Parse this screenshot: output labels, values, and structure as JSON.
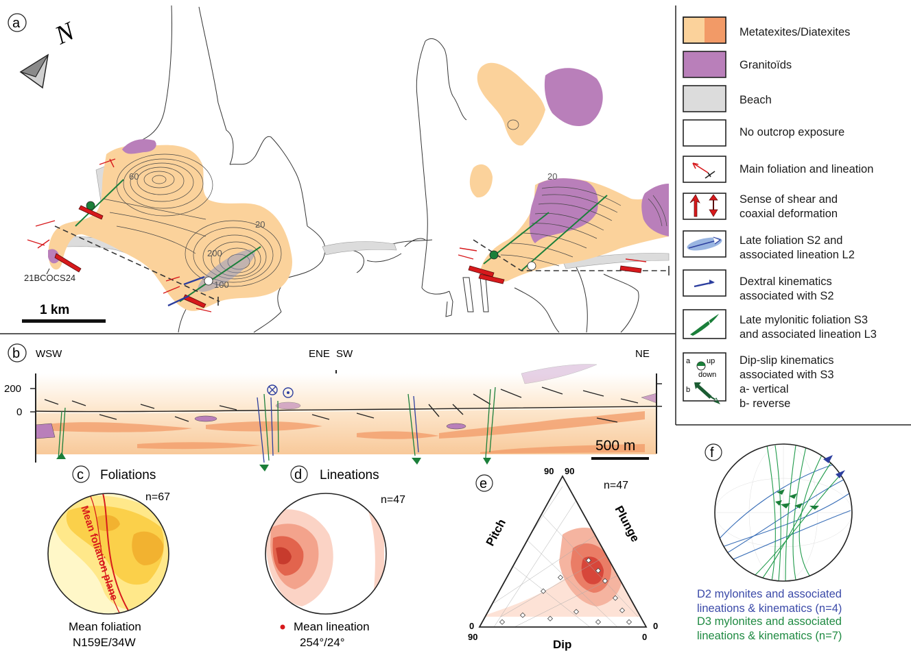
{
  "panel_a": {
    "letter": "a",
    "north_label": "N",
    "contours": [
      "60",
      "20",
      "200",
      "100",
      "20"
    ],
    "sample": "21BCOCS24",
    "scale": "1 km"
  },
  "legend": {
    "items": [
      {
        "label_lines": [
          "Metatexites/Diatexites"
        ]
      },
      {
        "label_lines": [
          "Granitoïds"
        ]
      },
      {
        "label_lines": [
          "Beach"
        ]
      },
      {
        "label_lines": [
          "No outcrop exposure"
        ]
      },
      {
        "label_lines": [
          "Main foliation and lineation"
        ]
      },
      {
        "label_lines": [
          "Sense of shear and",
          "coaxial deformation"
        ]
      },
      {
        "label_lines": [
          "Late foliation S2 and",
          "associated lineation L2"
        ]
      },
      {
        "label_lines": [
          "Dextral kinematics",
          "associated with S2"
        ]
      },
      {
        "label_lines": [
          "Late mylonitic foliation S3",
          "and associated lineation L3"
        ]
      },
      {
        "label_lines": [
          "Dip-slip kinematics",
          "associated with S3",
          "a- vertical",
          "b- reverse"
        ]
      }
    ],
    "dipslip_icon": {
      "a": "a",
      "b": "b",
      "up": "up",
      "down": "down"
    },
    "colors": {
      "meta_light": "#fbd29b",
      "meta_dark": "#f29a67",
      "granitoid": "#b97fba",
      "beach": "#dcdcdc",
      "red": "#d7191c",
      "blue": "#2c3e9e",
      "green": "#1b7f3a"
    }
  },
  "panel_b": {
    "letter": "b",
    "left_end": "WSW",
    "mid_left": "ENE",
    "mid_right": "SW",
    "right_end": "NE",
    "y_ticks": [
      "200",
      "0"
    ],
    "scale": "500 m"
  },
  "panel_c": {
    "letter": "c",
    "title": "Foliations",
    "n": "n=67",
    "plane_label": "Mean foliation plane",
    "caption1": "Mean foliation",
    "caption2": "N159E/34W"
  },
  "panel_d": {
    "letter": "d",
    "title": "Lineations",
    "n": "n=47",
    "caption1": "Mean lineation",
    "caption2": "254°/24°"
  },
  "panel_e": {
    "letter": "e",
    "n": "n=47",
    "top_left": "90",
    "top_right": "90",
    "bottom_left_zero": "0",
    "bottom_left_ninety": "90",
    "bottom_right_zero_a": "0",
    "bottom_right_zero_b": "0",
    "left_axis": "Pitch",
    "right_axis": "Plunge",
    "bottom_axis": "Dip"
  },
  "panel_f": {
    "letter": "f",
    "d2_line1": "D2 mylonites and associated",
    "d2_line2": "lineations & kinematics (n=4)",
    "d3_line1": "D3 mylonites and associated",
    "d3_line2": "lineations & kinematics (n=7)"
  }
}
